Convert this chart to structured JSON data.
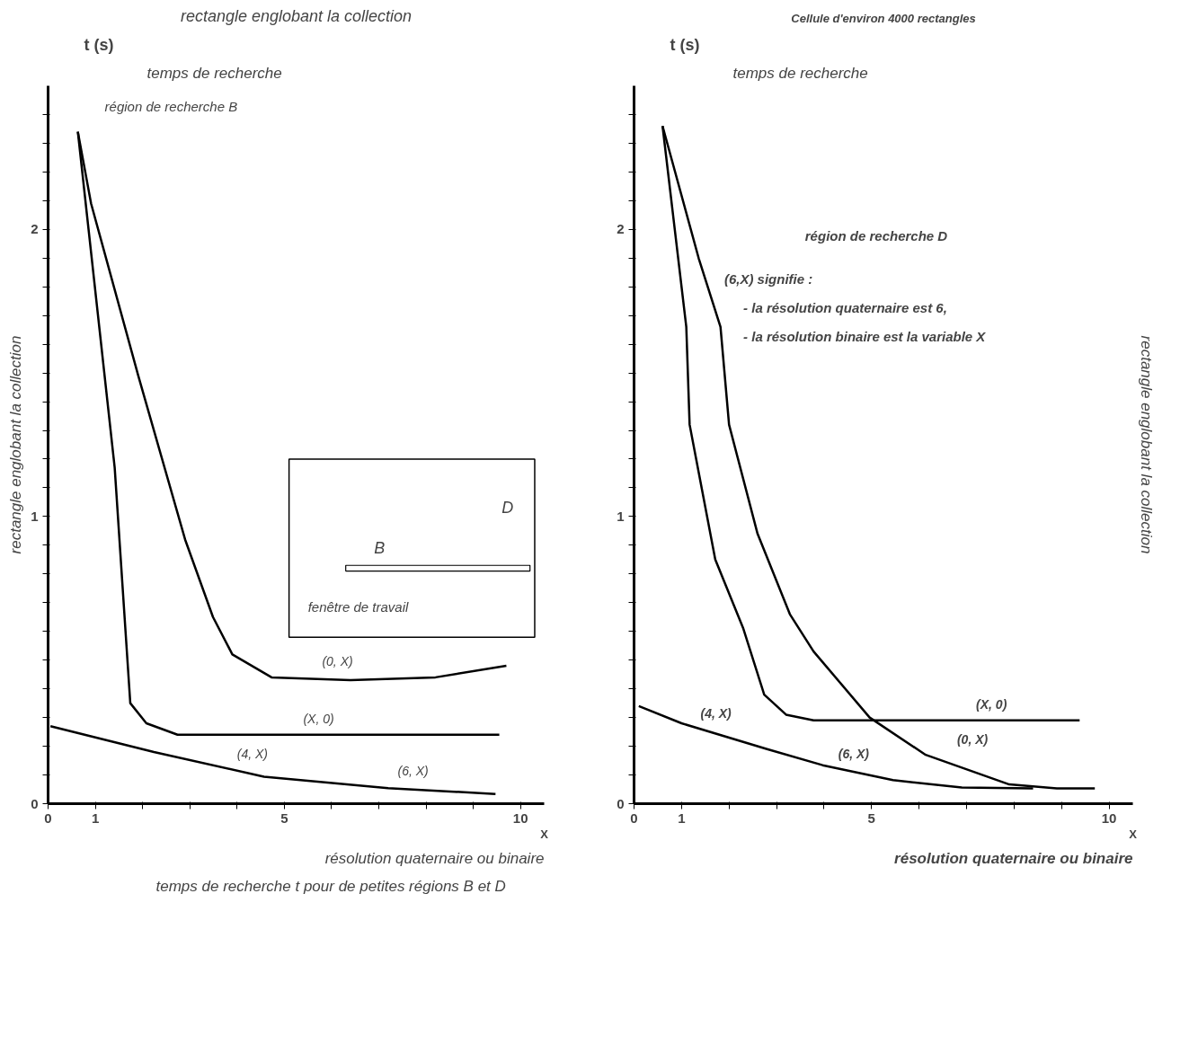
{
  "chart_data": [
    {
      "type": "line",
      "title": "rectangle englobant la collection",
      "ylabel": "t (s)",
      "xlabel": "X",
      "xlim": [
        0,
        10.5
      ],
      "ylim": [
        0,
        2.5
      ],
      "xticks": [
        0,
        1,
        {
          "value": 2,
          "label": null
        },
        {
          "value": 3,
          "label": null
        },
        {
          "value": 4,
          "label": null
        },
        5,
        {
          "value": 6,
          "label": null
        },
        {
          "value": 7,
          "label": null
        },
        {
          "value": 8,
          "label": null
        },
        {
          "value": 9,
          "label": null
        },
        10
      ],
      "yticks": [
        0,
        {
          "value": 0.1,
          "label": null
        },
        {
          "value": 0.2,
          "label": null
        },
        {
          "value": 0.3,
          "label": null
        },
        {
          "value": 0.4,
          "label": null
        },
        {
          "value": 0.5,
          "label": null
        },
        {
          "value": 0.6,
          "label": null
        },
        {
          "value": 0.7,
          "label": null
        },
        {
          "value": 0.8,
          "label": null
        },
        {
          "value": 0.9,
          "label": null
        },
        1,
        {
          "value": 1.1,
          "label": null
        },
        {
          "value": 1.2,
          "label": null
        },
        {
          "value": 1.3,
          "label": null
        },
        {
          "value": 1.4,
          "label": null
        },
        {
          "value": 1.5,
          "label": null
        },
        {
          "value": 1.6,
          "label": null
        },
        {
          "value": 1.7,
          "label": null
        },
        {
          "value": 1.8,
          "label": null
        },
        {
          "value": 1.9,
          "label": null
        },
        2,
        {
          "value": 2.1,
          "label": null
        },
        {
          "value": 2.2,
          "label": null
        },
        {
          "value": 2.3,
          "label": null
        },
        {
          "value": 2.4,
          "label": null
        }
      ],
      "grid": false,
      "marker": "none",
      "line_style": "solid",
      "series": [
        {
          "color": "#000000",
          "x": [
            0.63,
            0.91,
            1.91,
            2.9,
            3.49,
            3.9,
            4.73,
            6.4,
            8.2,
            9.7
          ],
          "values": [
            2.34,
            2.09,
            1.49,
            0.92,
            0.65,
            0.52,
            0.44,
            0.43,
            0.44,
            0.48
          ]
        },
        {
          "color": "#000000",
          "x": [
            0.63,
            1.41,
            1.74,
            2.08,
            2.74,
            9.55
          ],
          "values": [
            2.34,
            1.17,
            0.35,
            0.28,
            0.24,
            0.24
          ]
        },
        {
          "color": "#000000",
          "x": [
            0.05,
            2.24,
            4.57,
            7.2,
            9.47
          ],
          "values": [
            0.27,
            0.18,
            0.094,
            0.054,
            0.034
          ]
        }
      ],
      "annotations": [
        "temps de recherche",
        "région de recherche B",
        "résolution quaternaire ou binaire",
        "rectangle englobant la collection",
        "temps de recherche t pour de petites régions B et D",
        "D",
        "B",
        "fenêtre de travail",
        "(0, X)",
        "(X, 0)",
        "(4, X)",
        "(6, X)"
      ]
    },
    {
      "type": "line",
      "title": "Cellule d'environ 4000 rectangles",
      "ylabel": "t (s)",
      "xlabel": "X",
      "xlim": [
        0,
        10.5
      ],
      "ylim": [
        0,
        2.5
      ],
      "xticks": [
        0,
        1,
        {
          "value": 2,
          "label": null
        },
        {
          "value": 3,
          "label": null
        },
        {
          "value": 4,
          "label": null
        },
        5,
        {
          "value": 6,
          "label": null
        },
        {
          "value": 7,
          "label": null
        },
        {
          "value": 8,
          "label": null
        },
        {
          "value": 9,
          "label": null
        },
        10
      ],
      "yticks": [
        0,
        {
          "value": 0.1,
          "label": null
        },
        {
          "value": 0.2,
          "label": null
        },
        {
          "value": 0.3,
          "label": null
        },
        {
          "value": 0.4,
          "label": null
        },
        {
          "value": 0.5,
          "label": null
        },
        {
          "value": 0.6,
          "label": null
        },
        {
          "value": 0.7,
          "label": null
        },
        {
          "value": 0.8,
          "label": null
        },
        {
          "value": 0.9,
          "label": null
        },
        1,
        {
          "value": 1.1,
          "label": null
        },
        {
          "value": 1.2,
          "label": null
        },
        {
          "value": 1.3,
          "label": null
        },
        {
          "value": 1.4,
          "label": null
        },
        {
          "value": 1.5,
          "label": null
        },
        {
          "value": 1.6,
          "label": null
        },
        {
          "value": 1.7,
          "label": null
        },
        {
          "value": 1.8,
          "label": null
        },
        {
          "value": 1.9,
          "label": null
        },
        2,
        {
          "value": 2.1,
          "label": null
        },
        {
          "value": 2.2,
          "label": null
        },
        {
          "value": 2.3,
          "label": null
        },
        {
          "value": 2.4,
          "label": null
        }
      ],
      "grid": false,
      "marker": "none",
      "line_style": "solid",
      "series": [
        {
          "color": "#000000",
          "x": [
            0.6,
            1.1,
            1.17,
            1.71,
            2.3,
            2.74,
            3.2,
            3.78,
            9.38
          ],
          "values": [
            2.36,
            1.66,
            1.32,
            0.85,
            0.61,
            0.38,
            0.31,
            0.29,
            0.29
          ]
        },
        {
          "color": "#000000",
          "x": [
            0.6,
            1.36,
            1.82,
            2.0,
            2.6,
            3.28,
            3.78,
            4.96,
            6.14,
            7.9,
            8.9,
            9.7
          ],
          "values": [
            2.36,
            1.9,
            1.66,
            1.32,
            0.94,
            0.66,
            0.53,
            0.3,
            0.17,
            0.067,
            0.053,
            0.053
          ]
        },
        {
          "color": "#000000",
          "x": [
            0.1,
            1.0,
            2.8,
            3.97,
            5.45,
            6.9,
            8.4
          ],
          "values": [
            0.34,
            0.28,
            0.19,
            0.134,
            0.082,
            0.056,
            0.053
          ]
        }
      ],
      "annotations": [
        "temps de recherche",
        "région de recherche D",
        "résolution quaternaire ou binaire",
        "rectangle englobant la collection",
        "(6,X) signifie :",
        "- la résolution quaternaire est 6,",
        "- la résolution binaire est la variable X",
        "(X, 0)",
        "(4, X)",
        "(6, X)",
        "(0, X)"
      ]
    }
  ]
}
